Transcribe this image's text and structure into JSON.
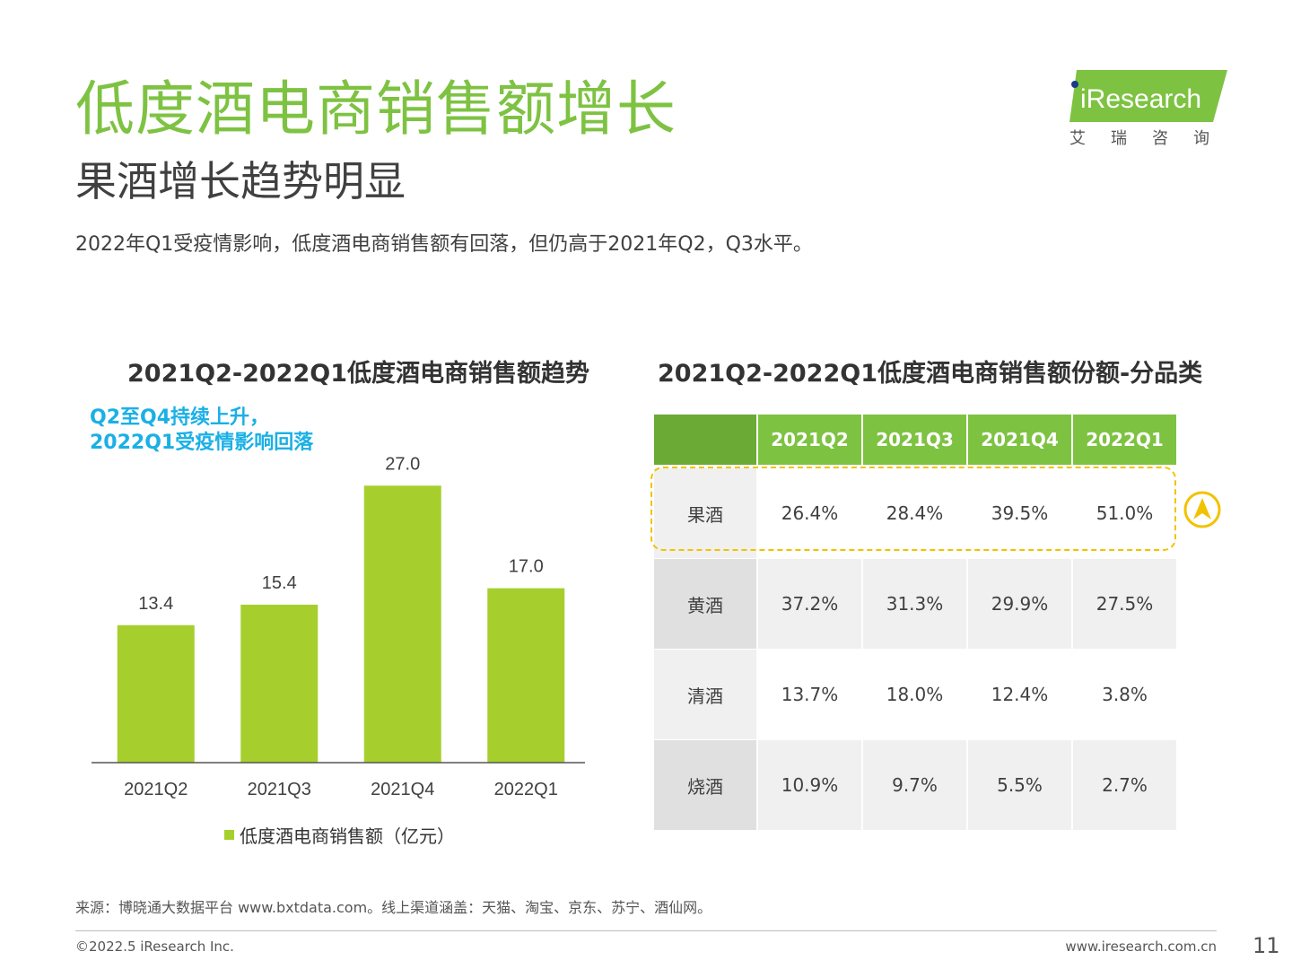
{
  "header": {
    "title": "低度酒电商销售额增长",
    "subtitle": "果酒增长趋势明显",
    "description": "2022年Q1受疫情影响，低度酒电商销售额有回落，但仍高于2021年Q2，Q3水平。"
  },
  "logo": {
    "brand": "iResearch",
    "cn": "艾瑞咨询",
    "color": "#7ec242"
  },
  "chart_data": [
    {
      "type": "bar",
      "title": "2021Q2-2022Q1低度酒电商销售额趋势",
      "annotation_line1": "Q2至Q4持续上升，",
      "annotation_line2": "2022Q1受疫情影响回落",
      "categories": [
        "2021Q2",
        "2021Q3",
        "2021Q4",
        "2022Q1"
      ],
      "values": [
        13.4,
        15.4,
        27.0,
        17.0
      ],
      "labels": [
        "13.4",
        "15.4",
        "27.0",
        "17.0"
      ],
      "series_name": "低度酒电商销售额（亿元）",
      "color": "#a6cf2e",
      "ylim": [
        0,
        30
      ],
      "legend": "bottom-center"
    },
    {
      "type": "table",
      "title": "2021Q2-2022Q1低度酒电商销售额份额-分品类",
      "columns": [
        "",
        "2021Q2",
        "2021Q3",
        "2021Q4",
        "2022Q1"
      ],
      "rows": [
        {
          "category": "果酒",
          "values": [
            "26.4%",
            "28.4%",
            "39.5%",
            "51.0%"
          ]
        },
        {
          "category": "黄酒",
          "values": [
            "37.2%",
            "31.3%",
            "29.9%",
            "27.5%"
          ]
        },
        {
          "category": "清酒",
          "values": [
            "13.7%",
            "18.0%",
            "12.4%",
            "3.8%"
          ]
        },
        {
          "category": "烧酒",
          "values": [
            "10.9%",
            "9.7%",
            "5.5%",
            "2.7%"
          ]
        }
      ],
      "highlighted_row": "果酒"
    }
  ],
  "footer": {
    "source": "来源：博晓通大数据平台 www.bxtdata.com。线上渠道涵盖：天猫、淘宝、京东、苏宁、酒仙网。",
    "copyright": "©2022.5 iResearch Inc.",
    "website": "www.iresearch.com.cn",
    "page": "11"
  }
}
